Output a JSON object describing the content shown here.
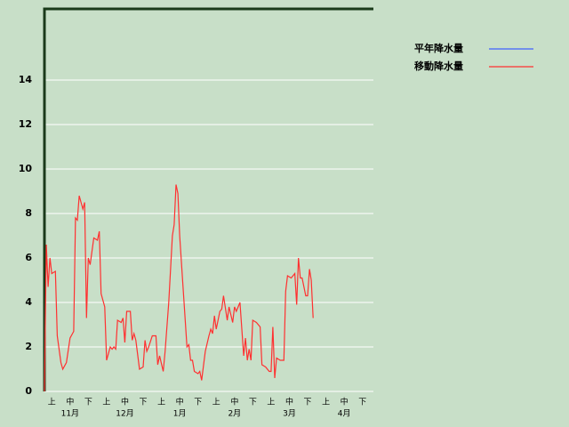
{
  "chart_data": {
    "type": "line",
    "ylim": [
      0,
      17.2
    ],
    "yticks": [
      0,
      2,
      4,
      6,
      8,
      10,
      12,
      14
    ],
    "xlim": [
      0,
      180
    ],
    "grid": true,
    "x_periods": [
      "上",
      "中",
      "下",
      "上",
      "中",
      "下",
      "上",
      "中",
      "下",
      "上",
      "中",
      "下",
      "上",
      "中",
      "下",
      "上",
      "中",
      "下"
    ],
    "x_months": [
      "11月",
      "12月",
      "1月",
      "2月",
      "3月",
      "4月"
    ],
    "series": [
      {
        "name": "平年降水量",
        "color": "#4060ff",
        "x": [],
        "values": []
      },
      {
        "name": "移動降水量",
        "color": "#ff3030",
        "x": [
          0,
          1,
          2,
          3,
          4,
          6,
          7,
          9,
          10,
          12,
          14,
          16,
          17,
          18,
          19,
          21,
          22,
          23,
          24,
          25,
          27,
          29,
          30,
          31,
          33,
          34,
          36,
          37,
          38,
          39,
          40,
          42,
          43,
          44,
          45,
          47,
          48,
          49,
          50,
          52,
          54,
          55,
          56,
          57,
          59,
          61,
          62,
          63,
          65,
          66,
          68,
          70,
          71,
          72,
          73,
          74,
          76,
          78,
          79,
          80,
          81,
          82,
          84,
          85,
          86,
          88,
          90,
          91,
          92,
          93,
          94,
          96,
          97,
          98,
          100,
          101,
          103,
          104,
          105,
          107,
          108,
          109,
          110,
          111,
          112,
          113,
          114,
          116,
          118,
          119,
          121,
          123,
          124,
          125,
          126,
          127,
          129,
          131,
          132,
          133,
          135,
          137,
          138,
          139,
          140,
          141,
          143,
          144,
          145,
          146,
          147
        ],
        "values": [
          0,
          6.6,
          4.7,
          6.0,
          5.3,
          5.4,
          2.5,
          1.3,
          1.0,
          1.3,
          2.4,
          2.7,
          7.8,
          7.7,
          8.8,
          8.2,
          8.5,
          3.3,
          6.0,
          5.7,
          6.9,
          6.8,
          7.2,
          4.4,
          3.8,
          1.4,
          2.0,
          1.9,
          2.0,
          1.9,
          3.2,
          3.1,
          3.3,
          2.2,
          3.6,
          3.6,
          2.3,
          2.6,
          2.3,
          1.0,
          1.1,
          2.3,
          1.8,
          2.0,
          2.5,
          2.5,
          1.2,
          1.6,
          0.9,
          1.8,
          4.0,
          7.0,
          7.5,
          9.3,
          8.9,
          7.0,
          4.5,
          2.0,
          2.1,
          1.4,
          1.4,
          0.9,
          0.8,
          0.9,
          0.5,
          1.8,
          2.5,
          2.8,
          2.6,
          3.4,
          2.8,
          3.6,
          3.7,
          4.3,
          3.2,
          3.8,
          3.1,
          3.8,
          3.6,
          4.0,
          2.8,
          1.6,
          2.4,
          1.4,
          1.9,
          1.4,
          3.2,
          3.1,
          2.9,
          1.2,
          1.1,
          0.9,
          0.9,
          2.9,
          0.6,
          1.5,
          1.4,
          1.4,
          4.5,
          5.2,
          5.1,
          5.3,
          3.9,
          6.0,
          5.1,
          5.1,
          4.3,
          4.3,
          5.5,
          5.0,
          3.3
        ]
      }
    ]
  }
}
